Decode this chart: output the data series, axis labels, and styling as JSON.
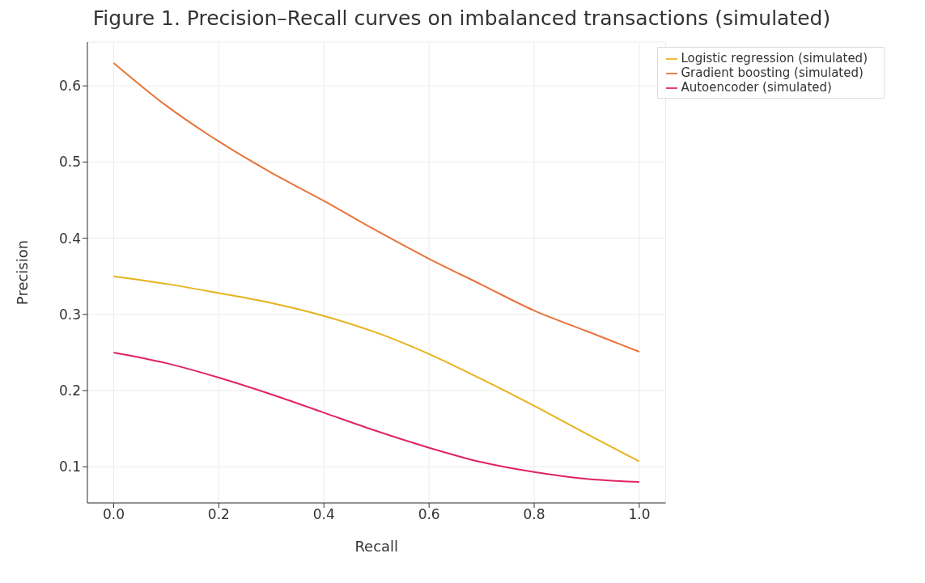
{
  "chart_data": {
    "type": "line",
    "title": "Figure 1. Precision–Recall curves on imbalanced transactions (simulated)",
    "xlabel": "Recall",
    "ylabel": "Precision",
    "x": [
      0,
      0.1,
      0.2,
      0.3,
      0.4,
      0.5,
      0.6,
      0.7,
      0.8,
      0.9,
      1.0
    ],
    "series": [
      {
        "name": "Logistic regression (simulated)",
        "color": "#e6b31e",
        "values": [
          0.35,
          0.34,
          0.328,
          0.315,
          0.298,
          0.276,
          0.248,
          0.215,
          0.18,
          0.143,
          0.107
        ]
      },
      {
        "name": "Gradient boosting (simulated)",
        "color": "#e8743b",
        "values": [
          0.63,
          0.574,
          0.527,
          0.486,
          0.449,
          0.41,
          0.373,
          0.339,
          0.305,
          0.278,
          0.251
        ]
      },
      {
        "name": "Autoencoder (simulated)",
        "color": "#e0245e",
        "values": [
          0.25,
          0.236,
          0.217,
          0.195,
          0.171,
          0.147,
          0.125,
          0.106,
          0.093,
          0.084,
          0.08
        ]
      }
    ],
    "xlim": [
      -0.05,
      1.05
    ],
    "ylim": [
      0.0525,
      0.6575
    ],
    "xticks": [
      {
        "value": 0,
        "label": "0.0"
      },
      0.2,
      0.4,
      0.6,
      0.8,
      {
        "value": 1,
        "label": "1.0"
      }
    ],
    "yticks": [
      0.1,
      0.2,
      0.3,
      0.4,
      0.5,
      0.6
    ],
    "grid": true,
    "legend": "top right",
    "marker": "none",
    "line_style": "solid"
  }
}
